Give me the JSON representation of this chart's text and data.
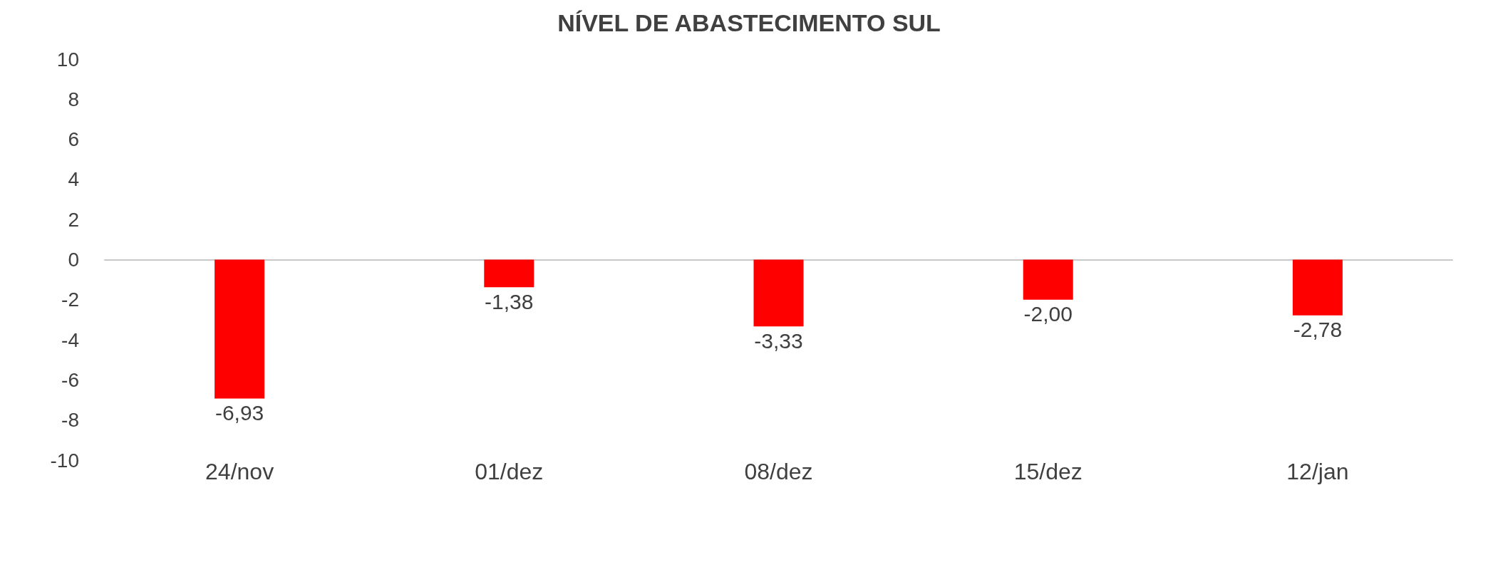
{
  "chart_data": {
    "type": "bar",
    "title": "NÍVEL DE ABASTECIMENTO SUL",
    "categories": [
      "24/nov",
      "01/dez",
      "08/dez",
      "15/dez",
      "12/jan"
    ],
    "values": [
      -6.93,
      -1.38,
      -3.33,
      -2.0,
      -2.78
    ],
    "value_labels": [
      "-6,93",
      "-1,38",
      "-3,33",
      "-2,00",
      "-2,78"
    ],
    "color": "#ff0000",
    "ylim": [
      -10,
      10
    ],
    "yticks": [
      -10,
      -8,
      -6,
      -4,
      -2,
      0,
      2,
      4,
      6,
      8,
      10
    ]
  }
}
